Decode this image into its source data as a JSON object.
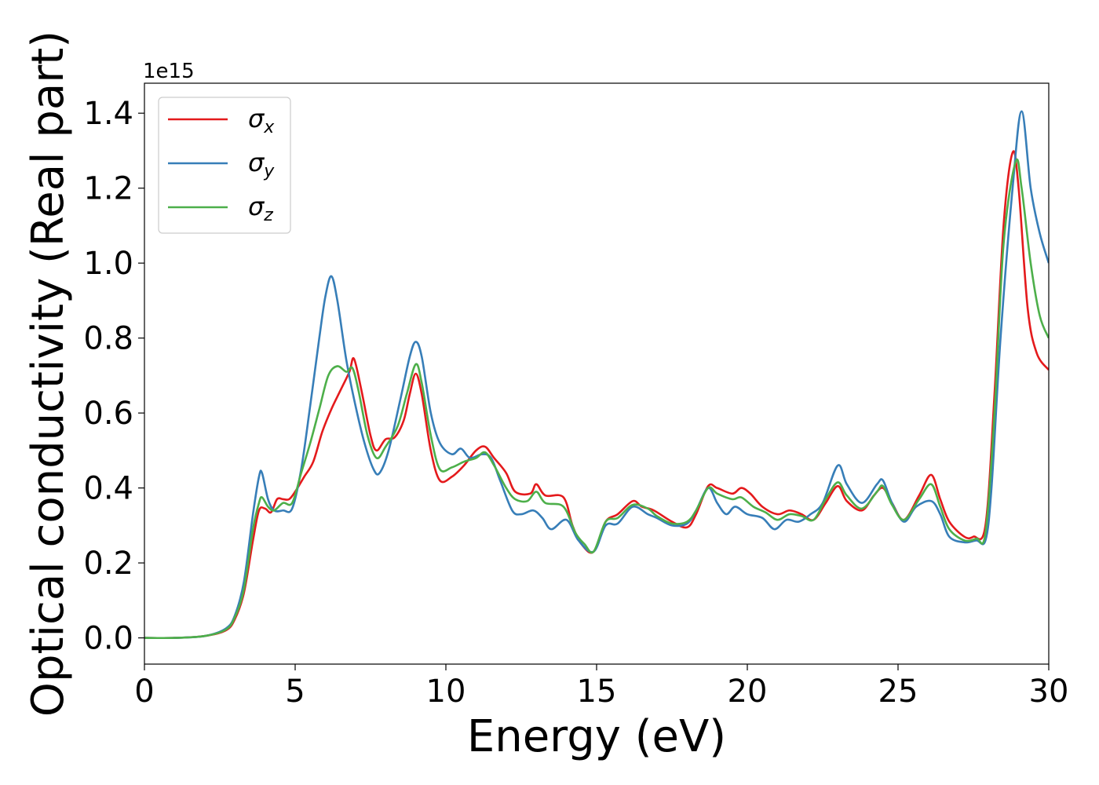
{
  "chart_data": {
    "type": "line",
    "xlabel": "Energy (eV)",
    "ylabel": "Optical conductivity (Real part)",
    "y_offset_label": "1e15",
    "xlim": [
      0,
      30
    ],
    "ylim": [
      -0.07,
      1.48
    ],
    "x_ticks": [
      0,
      5,
      10,
      15,
      20,
      25,
      30
    ],
    "x_tick_labels": [
      "0",
      "5",
      "10",
      "15",
      "20",
      "25",
      "30"
    ],
    "y_ticks": [
      0.0,
      0.2,
      0.4,
      0.6,
      0.8,
      1.0,
      1.2,
      1.4
    ],
    "y_tick_labels": [
      "0.0",
      "0.2",
      "0.4",
      "0.6",
      "0.8",
      "1.0",
      "1.2",
      "1.4"
    ],
    "grid": false,
    "legend_position": "top-left",
    "series": [
      {
        "name": "σx",
        "symbol": "σ",
        "subscript": "x",
        "color": "#e41a1c",
        "points": [
          [
            0,
            0
          ],
          [
            1,
            0
          ],
          [
            2,
            0.005
          ],
          [
            2.7,
            0.02
          ],
          [
            3.0,
            0.05
          ],
          [
            3.3,
            0.12
          ],
          [
            3.6,
            0.26
          ],
          [
            3.8,
            0.34
          ],
          [
            4.0,
            0.345
          ],
          [
            4.2,
            0.335
          ],
          [
            4.4,
            0.37
          ],
          [
            4.6,
            0.37
          ],
          [
            4.8,
            0.37
          ],
          [
            5.0,
            0.39
          ],
          [
            5.3,
            0.43
          ],
          [
            5.6,
            0.47
          ],
          [
            5.9,
            0.55
          ],
          [
            6.2,
            0.61
          ],
          [
            6.5,
            0.66
          ],
          [
            6.8,
            0.71
          ],
          [
            6.95,
            0.745
          ],
          [
            7.2,
            0.66
          ],
          [
            7.5,
            0.54
          ],
          [
            7.7,
            0.5
          ],
          [
            8.0,
            0.53
          ],
          [
            8.3,
            0.535
          ],
          [
            8.6,
            0.58
          ],
          [
            8.8,
            0.65
          ],
          [
            9.0,
            0.705
          ],
          [
            9.2,
            0.65
          ],
          [
            9.5,
            0.5
          ],
          [
            9.8,
            0.42
          ],
          [
            10.2,
            0.43
          ],
          [
            10.6,
            0.46
          ],
          [
            11.0,
            0.5
          ],
          [
            11.3,
            0.51
          ],
          [
            11.6,
            0.48
          ],
          [
            12.0,
            0.44
          ],
          [
            12.3,
            0.39
          ],
          [
            12.8,
            0.385
          ],
          [
            13.0,
            0.41
          ],
          [
            13.3,
            0.38
          ],
          [
            13.9,
            0.375
          ],
          [
            14.2,
            0.3
          ],
          [
            14.5,
            0.25
          ],
          [
            14.9,
            0.23
          ],
          [
            15.3,
            0.31
          ],
          [
            15.7,
            0.33
          ],
          [
            16.2,
            0.365
          ],
          [
            16.5,
            0.35
          ],
          [
            16.9,
            0.34
          ],
          [
            17.5,
            0.31
          ],
          [
            18.0,
            0.295
          ],
          [
            18.3,
            0.33
          ],
          [
            18.7,
            0.405
          ],
          [
            19.0,
            0.4
          ],
          [
            19.5,
            0.385
          ],
          [
            19.8,
            0.4
          ],
          [
            20.1,
            0.385
          ],
          [
            20.5,
            0.35
          ],
          [
            21.0,
            0.33
          ],
          [
            21.4,
            0.34
          ],
          [
            21.8,
            0.33
          ],
          [
            22.2,
            0.315
          ],
          [
            22.6,
            0.36
          ],
          [
            23.0,
            0.405
          ],
          [
            23.3,
            0.365
          ],
          [
            23.8,
            0.34
          ],
          [
            24.2,
            0.38
          ],
          [
            24.5,
            0.4
          ],
          [
            24.8,
            0.36
          ],
          [
            25.2,
            0.315
          ],
          [
            25.7,
            0.38
          ],
          [
            26.1,
            0.435
          ],
          [
            26.4,
            0.37
          ],
          [
            26.7,
            0.31
          ],
          [
            27.2,
            0.27
          ],
          [
            27.5,
            0.27
          ],
          [
            27.9,
            0.3
          ],
          [
            28.2,
            0.65
          ],
          [
            28.5,
            1.1
          ],
          [
            28.8,
            1.295
          ],
          [
            29.0,
            1.2
          ],
          [
            29.3,
            0.88
          ],
          [
            29.6,
            0.76
          ],
          [
            30.0,
            0.715
          ]
        ]
      },
      {
        "name": "σy",
        "symbol": "σ",
        "subscript": "y",
        "color": "#377eb8",
        "points": [
          [
            0,
            0
          ],
          [
            1,
            0
          ],
          [
            2,
            0.005
          ],
          [
            2.7,
            0.025
          ],
          [
            3.0,
            0.06
          ],
          [
            3.3,
            0.15
          ],
          [
            3.6,
            0.33
          ],
          [
            3.8,
            0.43
          ],
          [
            3.9,
            0.44
          ],
          [
            4.1,
            0.37
          ],
          [
            4.3,
            0.34
          ],
          [
            4.6,
            0.34
          ],
          [
            4.9,
            0.345
          ],
          [
            5.2,
            0.45
          ],
          [
            5.5,
            0.62
          ],
          [
            5.8,
            0.8
          ],
          [
            6.0,
            0.91
          ],
          [
            6.2,
            0.965
          ],
          [
            6.4,
            0.9
          ],
          [
            6.7,
            0.74
          ],
          [
            7.0,
            0.62
          ],
          [
            7.3,
            0.52
          ],
          [
            7.6,
            0.45
          ],
          [
            7.8,
            0.44
          ],
          [
            8.1,
            0.5
          ],
          [
            8.5,
            0.64
          ],
          [
            8.8,
            0.75
          ],
          [
            9.0,
            0.79
          ],
          [
            9.2,
            0.75
          ],
          [
            9.5,
            0.6
          ],
          [
            9.8,
            0.52
          ],
          [
            10.2,
            0.49
          ],
          [
            10.5,
            0.505
          ],
          [
            10.8,
            0.48
          ],
          [
            11.2,
            0.49
          ],
          [
            11.5,
            0.48
          ],
          [
            11.8,
            0.42
          ],
          [
            12.2,
            0.34
          ],
          [
            12.5,
            0.33
          ],
          [
            12.9,
            0.34
          ],
          [
            13.2,
            0.32
          ],
          [
            13.5,
            0.29
          ],
          [
            14.0,
            0.315
          ],
          [
            14.4,
            0.26
          ],
          [
            14.9,
            0.23
          ],
          [
            15.3,
            0.3
          ],
          [
            15.7,
            0.305
          ],
          [
            16.2,
            0.35
          ],
          [
            16.7,
            0.33
          ],
          [
            17.0,
            0.32
          ],
          [
            17.5,
            0.3
          ],
          [
            18.0,
            0.305
          ],
          [
            18.3,
            0.34
          ],
          [
            18.7,
            0.4
          ],
          [
            19.0,
            0.36
          ],
          [
            19.3,
            0.33
          ],
          [
            19.6,
            0.35
          ],
          [
            20.0,
            0.33
          ],
          [
            20.5,
            0.32
          ],
          [
            20.9,
            0.29
          ],
          [
            21.3,
            0.315
          ],
          [
            21.7,
            0.31
          ],
          [
            22.1,
            0.33
          ],
          [
            22.5,
            0.36
          ],
          [
            23.0,
            0.46
          ],
          [
            23.3,
            0.41
          ],
          [
            23.8,
            0.36
          ],
          [
            24.3,
            0.41
          ],
          [
            24.5,
            0.42
          ],
          [
            24.8,
            0.36
          ],
          [
            25.2,
            0.31
          ],
          [
            25.6,
            0.35
          ],
          [
            26.1,
            0.365
          ],
          [
            26.4,
            0.33
          ],
          [
            26.7,
            0.27
          ],
          [
            27.2,
            0.255
          ],
          [
            27.6,
            0.26
          ],
          [
            27.9,
            0.26
          ],
          [
            28.1,
            0.4
          ],
          [
            28.4,
            0.8
          ],
          [
            28.8,
            1.2
          ],
          [
            29.1,
            1.405
          ],
          [
            29.4,
            1.2
          ],
          [
            29.7,
            1.08
          ],
          [
            30.0,
            1.0
          ]
        ]
      },
      {
        "name": "σz",
        "symbol": "σ",
        "subscript": "z",
        "color": "#4daf4a",
        "points": [
          [
            0,
            0
          ],
          [
            1,
            0
          ],
          [
            2,
            0.005
          ],
          [
            2.7,
            0.022
          ],
          [
            3.0,
            0.055
          ],
          [
            3.3,
            0.13
          ],
          [
            3.6,
            0.29
          ],
          [
            3.8,
            0.36
          ],
          [
            3.9,
            0.375
          ],
          [
            4.1,
            0.35
          ],
          [
            4.3,
            0.34
          ],
          [
            4.6,
            0.36
          ],
          [
            4.9,
            0.36
          ],
          [
            5.2,
            0.44
          ],
          [
            5.5,
            0.52
          ],
          [
            5.8,
            0.61
          ],
          [
            6.1,
            0.7
          ],
          [
            6.4,
            0.725
          ],
          [
            6.7,
            0.71
          ],
          [
            6.9,
            0.72
          ],
          [
            7.1,
            0.66
          ],
          [
            7.4,
            0.54
          ],
          [
            7.7,
            0.48
          ],
          [
            8.0,
            0.51
          ],
          [
            8.4,
            0.565
          ],
          [
            8.7,
            0.65
          ],
          [
            9.0,
            0.73
          ],
          [
            9.2,
            0.68
          ],
          [
            9.5,
            0.54
          ],
          [
            9.8,
            0.45
          ],
          [
            10.2,
            0.455
          ],
          [
            10.6,
            0.47
          ],
          [
            11.0,
            0.48
          ],
          [
            11.3,
            0.495
          ],
          [
            11.6,
            0.46
          ],
          [
            12.0,
            0.4
          ],
          [
            12.3,
            0.37
          ],
          [
            12.7,
            0.365
          ],
          [
            13.0,
            0.39
          ],
          [
            13.3,
            0.36
          ],
          [
            13.9,
            0.35
          ],
          [
            14.3,
            0.28
          ],
          [
            14.6,
            0.25
          ],
          [
            14.9,
            0.23
          ],
          [
            15.3,
            0.31
          ],
          [
            15.7,
            0.32
          ],
          [
            16.2,
            0.355
          ],
          [
            16.7,
            0.345
          ],
          [
            17.0,
            0.325
          ],
          [
            17.5,
            0.305
          ],
          [
            18.0,
            0.31
          ],
          [
            18.3,
            0.34
          ],
          [
            18.7,
            0.4
          ],
          [
            19.0,
            0.385
          ],
          [
            19.5,
            0.37
          ],
          [
            19.8,
            0.375
          ],
          [
            20.2,
            0.35
          ],
          [
            20.6,
            0.335
          ],
          [
            21.0,
            0.315
          ],
          [
            21.4,
            0.33
          ],
          [
            21.8,
            0.325
          ],
          [
            22.2,
            0.315
          ],
          [
            22.6,
            0.37
          ],
          [
            23.0,
            0.415
          ],
          [
            23.3,
            0.38
          ],
          [
            23.8,
            0.345
          ],
          [
            24.3,
            0.39
          ],
          [
            24.5,
            0.405
          ],
          [
            24.8,
            0.355
          ],
          [
            25.2,
            0.315
          ],
          [
            25.7,
            0.37
          ],
          [
            26.1,
            0.41
          ],
          [
            26.4,
            0.35
          ],
          [
            26.7,
            0.29
          ],
          [
            27.2,
            0.26
          ],
          [
            27.6,
            0.265
          ],
          [
            27.9,
            0.28
          ],
          [
            28.2,
            0.6
          ],
          [
            28.5,
            1.05
          ],
          [
            28.9,
            1.27
          ],
          [
            29.1,
            1.2
          ],
          [
            29.4,
            1.0
          ],
          [
            29.7,
            0.86
          ],
          [
            30.0,
            0.8
          ]
        ]
      }
    ]
  }
}
